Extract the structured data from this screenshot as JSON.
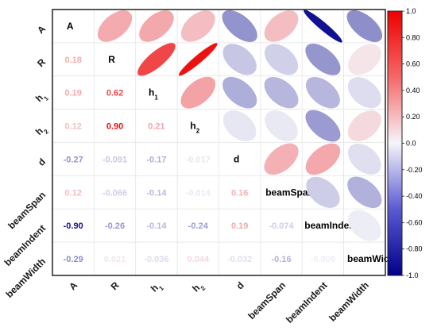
{
  "chart_data": {
    "type": "heatmap",
    "variables": [
      "A",
      "R",
      "h1",
      "h2",
      "d",
      "beamSpan",
      "beamIndent",
      "beamWidth"
    ],
    "labels": [
      {
        "main": "A",
        "sub": ""
      },
      {
        "main": "R",
        "sub": ""
      },
      {
        "main": "h",
        "sub": "1"
      },
      {
        "main": "h",
        "sub": "2"
      },
      {
        "main": "d",
        "sub": ""
      },
      {
        "main": "beamSpan",
        "sub": ""
      },
      {
        "main": "beamIndent",
        "sub": ""
      },
      {
        "main": "beamWidth",
        "sub": ""
      }
    ],
    "correlation_matrix": [
      [
        1.0,
        0.18,
        0.19,
        0.12,
        -0.27,
        0.12,
        -0.9,
        -0.29
      ],
      [
        0.18,
        1.0,
        0.62,
        0.9,
        -0.091,
        -0.066,
        -0.26,
        0.021
      ],
      [
        0.19,
        0.62,
        1.0,
        0.21,
        -0.17,
        -0.14,
        -0.14,
        -0.036
      ],
      [
        0.12,
        0.9,
        0.21,
        1.0,
        -0.017,
        -0.014,
        -0.24,
        0.044
      ],
      [
        -0.27,
        -0.091,
        -0.17,
        -0.017,
        1.0,
        0.16,
        0.19,
        -0.032
      ],
      [
        0.12,
        -0.066,
        -0.14,
        -0.014,
        0.16,
        1.0,
        -0.074,
        -0.16
      ],
      [
        -0.9,
        -0.26,
        -0.14,
        -0.24,
        0.19,
        -0.074,
        1.0,
        -0.008
      ],
      [
        -0.29,
        0.021,
        -0.036,
        0.044,
        -0.032,
        -0.16,
        -0.008,
        1.0
      ]
    ],
    "value_labels": [
      [
        "",
        "",
        "",
        "",
        "",
        "",
        "",
        ""
      ],
      [
        "0.18",
        "",
        "",
        "",
        "",
        "",
        "",
        ""
      ],
      [
        "0.19",
        "0.62",
        "",
        "",
        "",
        "",
        "",
        ""
      ],
      [
        "0.12",
        "0.90",
        "0.21",
        "",
        "",
        "",
        "",
        ""
      ],
      [
        "-0.27",
        "-0.091",
        "-0.17",
        "-0.017",
        "",
        "",
        "",
        ""
      ],
      [
        "0.12",
        "-0.066",
        "-0.14",
        "-0.014",
        "0.16",
        "",
        "",
        ""
      ],
      [
        "-0.90",
        "-0.26",
        "-0.14",
        "-0.24",
        "0.19",
        "-0.074",
        "",
        ""
      ],
      [
        "-0.29",
        "0.021",
        "-0.036",
        "0.044",
        "-0.032",
        "-0.16",
        "-0.008",
        ""
      ]
    ],
    "lower_triangle": "numbers",
    "upper_triangle": "ellipses",
    "diagonal": "variable names",
    "colorbar": {
      "range": [
        -1.0,
        1.0
      ],
      "ticks": [
        -1.0,
        -0.8,
        -0.6,
        -0.4,
        -0.2,
        0.0,
        0.2,
        0.4,
        0.6,
        0.8,
        1.0
      ],
      "tick_labels": [
        "-1.0",
        "-0.80",
        "-0.60",
        "-0.40",
        "-0.20",
        "0.0",
        "0.20",
        "0.40",
        "0.60",
        "0.80",
        "1.0"
      ],
      "colors": {
        "negative": "#00008b",
        "zero": "#f5f5fa",
        "positive": "#ee0000"
      },
      "placement": "right"
    },
    "grid": true
  }
}
